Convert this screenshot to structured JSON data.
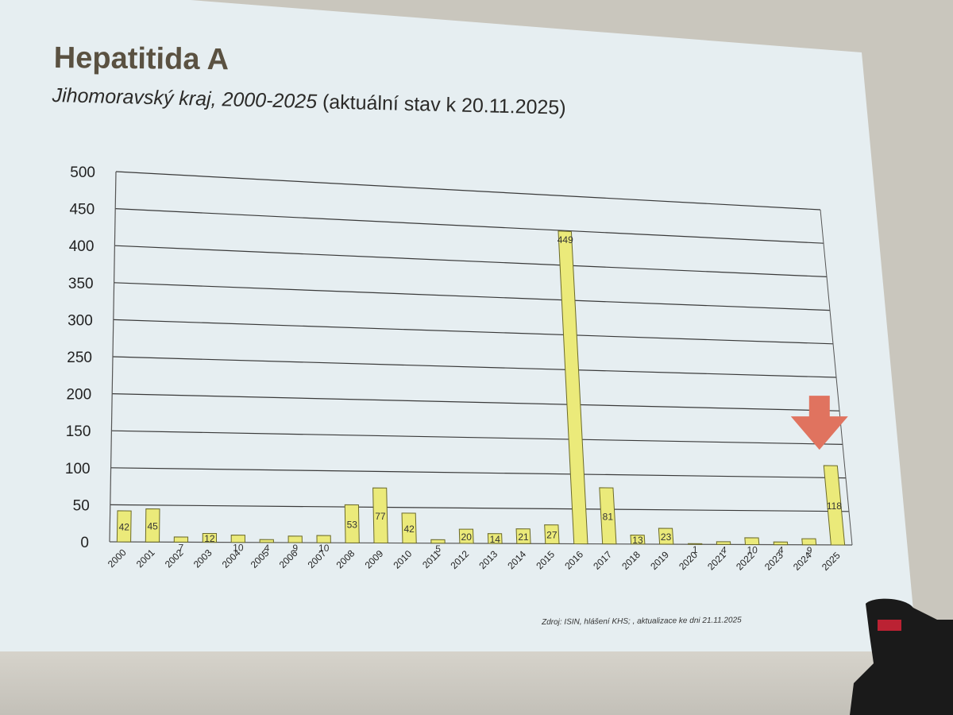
{
  "slide": {
    "title": "Hepatitida A",
    "subtitle_region": "Jihomoravský kraj, 2000-2025",
    "subtitle_note": "(aktuální stav k 20.11.2025)",
    "source": "Zdroj: ISIN, hlášení KHS; , aktualizace ke dni 21.11.2025"
  },
  "chart_data": {
    "type": "bar",
    "title": "Hepatitida A",
    "subtitle": "Jihomoravský kraj, 2000-2025 (aktuální stav k 20.11.2025)",
    "xlabel": "",
    "ylabel": "",
    "ylim": [
      0,
      500
    ],
    "yticks": [
      0,
      50,
      100,
      150,
      200,
      250,
      300,
      350,
      400,
      450,
      500
    ],
    "grid": true,
    "legend": "none",
    "categories": [
      "2000",
      "2001",
      "2002",
      "2003",
      "2004",
      "2005",
      "2006",
      "2007",
      "2008",
      "2009",
      "2010",
      "2011",
      "2012",
      "2013",
      "2014",
      "2015",
      "2016",
      "2017",
      "2018",
      "2019",
      "2020",
      "2021",
      "2022",
      "2023",
      "2024",
      "2025"
    ],
    "values": [
      42,
      45,
      7,
      12,
      10,
      4,
      9,
      10,
      53,
      77,
      42,
      5,
      20,
      14,
      21,
      27,
      449,
      81,
      13,
      23,
      1,
      4,
      10,
      4,
      9,
      118
    ],
    "bar_color": "#ebea7a",
    "highlight": {
      "category": "2025",
      "marker": "arrow-down",
      "color": "#e0735f"
    }
  }
}
